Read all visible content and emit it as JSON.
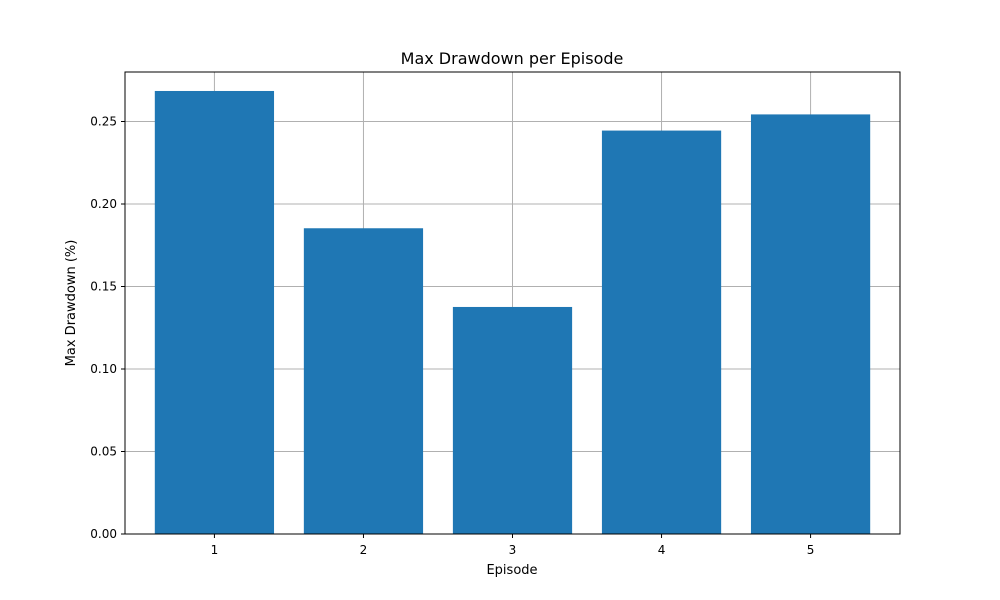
{
  "chart_data": {
    "type": "bar",
    "title": "Max Drawdown per Episode",
    "xlabel": "Episode",
    "ylabel": "Max Drawdown (%)",
    "categories": [
      "1",
      "2",
      "3",
      "4",
      "5"
    ],
    "values": [
      0.2685,
      0.1853,
      0.1376,
      0.2445,
      0.2543
    ],
    "ylim": [
      0,
      0.28
    ],
    "yticks": [
      0.0,
      0.05,
      0.1,
      0.15,
      0.2,
      0.25
    ],
    "ytick_labels": [
      "0.00",
      "0.05",
      "0.10",
      "0.15",
      "0.20",
      "0.25"
    ],
    "grid": true,
    "bar_color": "#1f77b4",
    "grid_color": "#b0b0b0"
  }
}
